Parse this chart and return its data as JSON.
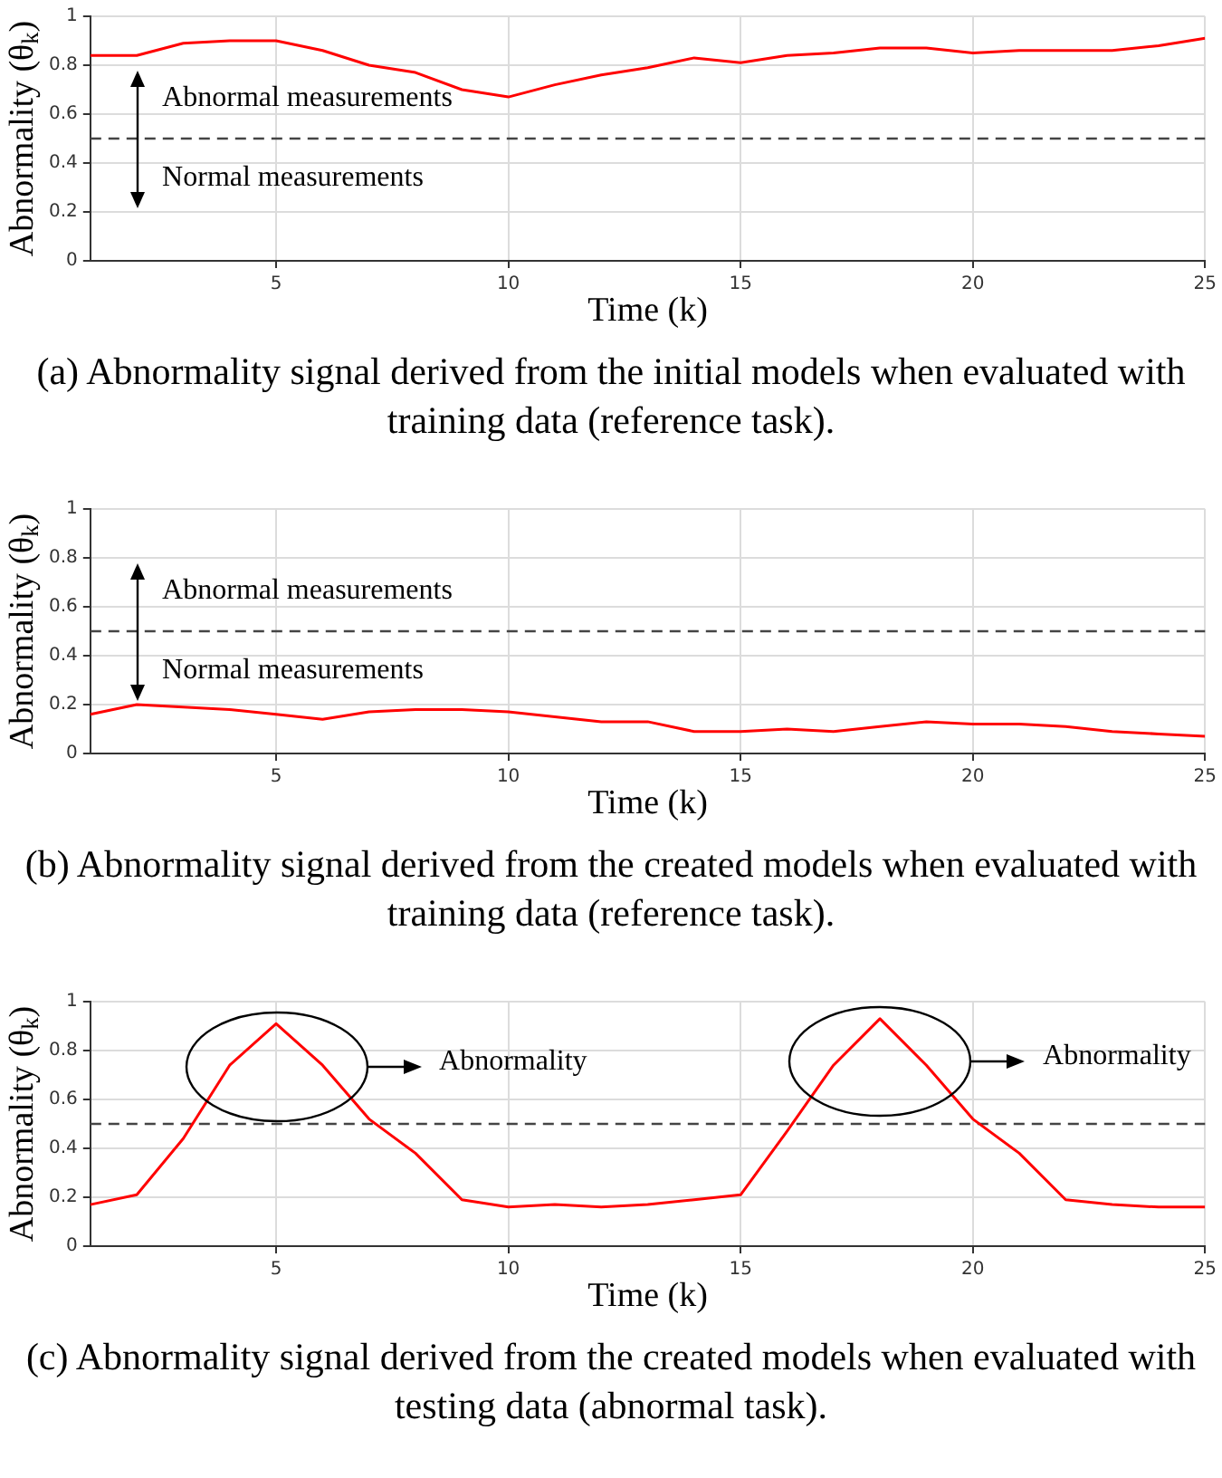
{
  "chart_data": [
    {
      "type": "line",
      "xlabel": "Time (k)",
      "ylabel": "Abnormality (θ$_{k}$)",
      "x": [
        1,
        2,
        3,
        4,
        5,
        6,
        7,
        8,
        9,
        10,
        11,
        12,
        13,
        14,
        15,
        16,
        17,
        18,
        19,
        20,
        21,
        22,
        23,
        24,
        25
      ],
      "series": [
        {
          "color": "#ff0000",
          "values": [
            0.84,
            0.84,
            0.89,
            0.9,
            0.9,
            0.86,
            0.8,
            0.77,
            0.7,
            0.67,
            0.72,
            0.76,
            0.79,
            0.83,
            0.81,
            0.84,
            0.85,
            0.87,
            0.87,
            0.85,
            0.86,
            0.86,
            0.86,
            0.88,
            0.91
          ]
        }
      ],
      "xlim": [
        1,
        25
      ],
      "xticks": [
        5,
        10,
        15,
        20,
        25
      ],
      "ylim": [
        0,
        1
      ],
      "yticks": [
        0,
        0.2,
        0.4,
        0.6,
        0.8,
        1
      ],
      "grid": true,
      "ref_lines": [
        {
          "axis": "y",
          "value": 0.5,
          "color": "#444444",
          "line_style": "dashed"
        }
      ],
      "annotations": [
        "Abnormal measurements",
        "Normal measurements",
        "(a) Abnormality signal derived from the initial models when evaluated with training data (reference task)."
      ]
    },
    {
      "type": "line",
      "xlabel": "Time (k)",
      "ylabel": "Abnormality (θ$_{k}$)",
      "x": [
        1,
        2,
        3,
        4,
        5,
        6,
        7,
        8,
        9,
        10,
        11,
        12,
        13,
        14,
        15,
        16,
        17,
        18,
        19,
        20,
        21,
        22,
        23,
        24,
        25
      ],
      "series": [
        {
          "color": "#ff0000",
          "values": [
            0.16,
            0.2,
            0.19,
            0.18,
            0.16,
            0.14,
            0.17,
            0.18,
            0.18,
            0.17,
            0.15,
            0.13,
            0.13,
            0.09,
            0.09,
            0.1,
            0.09,
            0.11,
            0.13,
            0.12,
            0.12,
            0.11,
            0.09,
            0.08,
            0.07
          ]
        }
      ],
      "xlim": [
        1,
        25
      ],
      "xticks": [
        5,
        10,
        15,
        20,
        25
      ],
      "ylim": [
        0,
        1
      ],
      "yticks": [
        0,
        0.2,
        0.4,
        0.6,
        0.8,
        1
      ],
      "grid": true,
      "ref_lines": [
        {
          "axis": "y",
          "value": 0.5,
          "color": "#444444",
          "line_style": "dashed"
        }
      ],
      "annotations": [
        "Abnormal measurements",
        "Normal measurements",
        "(b) Abnormality signal derived from the created models when evaluated with training data (reference task)."
      ]
    },
    {
      "type": "line",
      "xlabel": "Time (k)",
      "ylabel": "Abnormality (θ$_{k}$)",
      "x": [
        1,
        2,
        3,
        4,
        5,
        6,
        7,
        8,
        9,
        10,
        11,
        12,
        13,
        14,
        15,
        16,
        17,
        18,
        19,
        20,
        21,
        22,
        23,
        24,
        25
      ],
      "series": [
        {
          "color": "#ff0000",
          "values": [
            0.17,
            0.21,
            0.44,
            0.74,
            0.91,
            0.74,
            0.52,
            0.38,
            0.19,
            0.16,
            0.17,
            0.16,
            0.17,
            0.19,
            0.21,
            0.47,
            0.74,
            0.93,
            0.74,
            0.52,
            0.38,
            0.19,
            0.17,
            0.16,
            0.16
          ]
        }
      ],
      "xlim": [
        1,
        25
      ],
      "xticks": [
        5,
        10,
        15,
        20,
        25
      ],
      "ylim": [
        0,
        1
      ],
      "yticks": [
        0,
        0.2,
        0.4,
        0.6,
        0.8,
        1
      ],
      "grid": true,
      "ref_lines": [
        {
          "axis": "y",
          "value": 0.5,
          "color": "#444444",
          "line_style": "dashed"
        }
      ],
      "annotations": [
        "Abnormality",
        "Abnormality",
        "(c) Abnormality signal derived from the created models when evaluated with testing data (abnormal task)."
      ]
    }
  ]
}
